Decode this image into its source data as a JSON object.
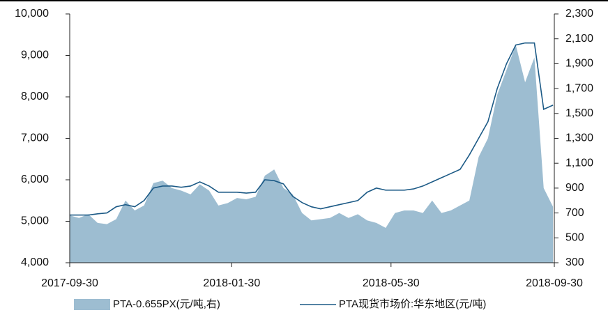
{
  "chart_data": {
    "type": "area-line",
    "x": [
      "2017-09-30",
      "2017-10-07",
      "2017-10-14",
      "2017-10-21",
      "2017-10-28",
      "2017-11-04",
      "2017-11-11",
      "2017-11-18",
      "2017-11-25",
      "2017-12-02",
      "2017-12-09",
      "2017-12-16",
      "2017-12-23",
      "2017-12-30",
      "2018-01-06",
      "2018-01-13",
      "2018-01-20",
      "2018-01-27",
      "2018-02-03",
      "2018-02-10",
      "2018-02-17",
      "2018-02-24",
      "2018-03-03",
      "2018-03-10",
      "2018-03-17",
      "2018-03-24",
      "2018-03-31",
      "2018-04-07",
      "2018-04-14",
      "2018-04-21",
      "2018-04-28",
      "2018-05-05",
      "2018-05-12",
      "2018-05-19",
      "2018-05-26",
      "2018-06-02",
      "2018-06-09",
      "2018-06-16",
      "2018-06-23",
      "2018-06-30",
      "2018-07-07",
      "2018-07-14",
      "2018-07-21",
      "2018-07-28",
      "2018-08-04",
      "2018-08-11",
      "2018-08-18",
      "2018-08-25",
      "2018-09-01",
      "2018-09-08",
      "2018-09-15",
      "2018-09-22",
      "2018-09-29"
    ],
    "series": [
      {
        "name": "PTA-0.655PX(元/吨,右)",
        "type": "area",
        "axis": "y2",
        "color": "#9dbdd1",
        "values": [
          680,
          660,
          690,
          620,
          610,
          650,
          800,
          720,
          760,
          940,
          960,
          900,
          880,
          850,
          930,
          880,
          760,
          780,
          820,
          810,
          830,
          1000,
          1050,
          900,
          850,
          700,
          640,
          650,
          660,
          700,
          660,
          690,
          640,
          620,
          580,
          700,
          720,
          720,
          700,
          800,
          700,
          720,
          760,
          800,
          1150,
          1300,
          1650,
          1850,
          2050,
          1750,
          1950,
          900,
          750
        ]
      },
      {
        "name": "PTA现货市场价:华东地区(元/吨)",
        "type": "line",
        "color": "#1c5a86",
        "values": [
          5150,
          5150,
          5150,
          5180,
          5200,
          5350,
          5400,
          5350,
          5500,
          5800,
          5850,
          5850,
          5820,
          5850,
          5950,
          5850,
          5700,
          5700,
          5700,
          5680,
          5700,
          6000,
          5980,
          5900,
          5600,
          5450,
          5350,
          5300,
          5350,
          5400,
          5450,
          5500,
          5700,
          5800,
          5750,
          5750,
          5750,
          5780,
          5850,
          5950,
          6050,
          6150,
          6250,
          6600,
          7000,
          7400,
          8200,
          8800,
          9250,
          9300,
          9300,
          7700,
          7800
        ]
      }
    ],
    "xlim": [
      "2017-09-30",
      "2018-09-30"
    ],
    "xticks": [
      "2017-09-30",
      "2018-01-30",
      "2018-05-30",
      "2018-09-30"
    ],
    "ylim": [
      4000,
      10000
    ],
    "yticks": [
      {
        "value": 4000,
        "label": "4,000"
      },
      {
        "value": 5000,
        "label": "5,000"
      },
      {
        "value": 6000,
        "label": "6,000"
      },
      {
        "value": 7000,
        "label": "7,000"
      },
      {
        "value": 8000,
        "label": "8,000"
      },
      {
        "value": 9000,
        "label": "9,000"
      },
      {
        "value": 10000,
        "label": "10,000"
      }
    ],
    "y2lim": [
      300,
      2300
    ],
    "y2ticks": [
      300,
      500,
      700,
      900,
      {
        "value": 1100,
        "label": "1,100"
      },
      {
        "value": 1300,
        "label": "1,300"
      },
      {
        "value": 1500,
        "label": "1,500"
      },
      {
        "value": 1700,
        "label": "1,700"
      },
      {
        "value": 1900,
        "label": "1,900"
      },
      {
        "value": 2100,
        "label": "2,100"
      },
      {
        "value": 2300,
        "label": "2,300"
      }
    ],
    "legend": "bottom"
  }
}
